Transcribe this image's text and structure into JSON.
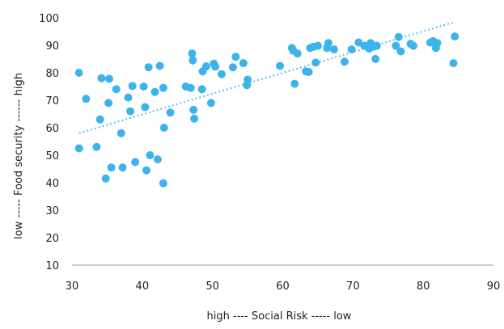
{
  "chart_data": {
    "type": "scatter",
    "title": "",
    "xlabel": "high ---- Social Risk ----- low",
    "ylabel": "low ----- Food security ------ high",
    "xlim": [
      30,
      90
    ],
    "ylim": [
      10,
      100
    ],
    "xticks": [
      "30",
      "40",
      "50",
      "60",
      "70",
      "80",
      "90"
    ],
    "yticks": [
      "10",
      "20",
      "30",
      "40",
      "50",
      "60",
      "70",
      "80",
      "90",
      "100"
    ],
    "grid": false,
    "legend": "none",
    "colors": {
      "points": "#3DB3EC",
      "trendline": "#5BC0EB",
      "axis": "#9a9a9a",
      "text": "#222222"
    },
    "trendline": {
      "style": "dotted",
      "x": [
        31,
        84.5
      ],
      "y": [
        58,
        98.5
      ]
    },
    "series": [
      {
        "points": [
          [
            31,
            80
          ],
          [
            31,
            52.5
          ],
          [
            32,
            70.5
          ],
          [
            33.5,
            53
          ],
          [
            34,
            63
          ],
          [
            34.2,
            78
          ],
          [
            34.8,
            41.5
          ],
          [
            35.2,
            69
          ],
          [
            35.3,
            77.8
          ],
          [
            35.6,
            45.5
          ],
          [
            36.3,
            74
          ],
          [
            37,
            58
          ],
          [
            37.2,
            45.5
          ],
          [
            38,
            71
          ],
          [
            38.3,
            66
          ],
          [
            38.6,
            75.2
          ],
          [
            39,
            47.5
          ],
          [
            40.2,
            75
          ],
          [
            40.4,
            67.5
          ],
          [
            40.6,
            44.5
          ],
          [
            40.9,
            82
          ],
          [
            41.1,
            50
          ],
          [
            41.8,
            73
          ],
          [
            42.2,
            48.5
          ],
          [
            42.5,
            82.5
          ],
          [
            43,
            74.5
          ],
          [
            43,
            39.8
          ],
          [
            43.1,
            60
          ],
          [
            44,
            65.5
          ],
          [
            46.2,
            75
          ],
          [
            46.9,
            74.5
          ],
          [
            47.1,
            87
          ],
          [
            47.2,
            84.5
          ],
          [
            47.3,
            66.5
          ],
          [
            47.4,
            63.3
          ],
          [
            48.5,
            74
          ],
          [
            48.6,
            80.5
          ],
          [
            49.1,
            82.3
          ],
          [
            49.8,
            69
          ],
          [
            50.2,
            83.3
          ],
          [
            50.4,
            82.2
          ],
          [
            51.3,
            79.5
          ],
          [
            52.9,
            82
          ],
          [
            53.3,
            85.8
          ],
          [
            54.4,
            83.5
          ],
          [
            54.9,
            75.5
          ],
          [
            55,
            77.5
          ],
          [
            59.6,
            82.5
          ],
          [
            61.3,
            89
          ],
          [
            61.5,
            88
          ],
          [
            61.7,
            76
          ],
          [
            62.1,
            87
          ],
          [
            63.3,
            80.5
          ],
          [
            63.7,
            80.3
          ],
          [
            63.9,
            89
          ],
          [
            64.4,
            89.5
          ],
          [
            64.7,
            83.7
          ],
          [
            65,
            89.8
          ],
          [
            66.3,
            89
          ],
          [
            66.5,
            90.8
          ],
          [
            67.3,
            88.5
          ],
          [
            68.8,
            84
          ],
          [
            69.8,
            88.5
          ],
          [
            70.8,
            91
          ],
          [
            71.6,
            89.8
          ],
          [
            72.3,
            88.8
          ],
          [
            72.5,
            90.8
          ],
          [
            72.9,
            89.5
          ],
          [
            73.2,
            85
          ],
          [
            73.4,
            89.8
          ],
          [
            76.1,
            89.8
          ],
          [
            76.5,
            93
          ],
          [
            76.8,
            87.8
          ],
          [
            78.2,
            90.5
          ],
          [
            78.6,
            89.8
          ],
          [
            81,
            91
          ],
          [
            81.4,
            91.5
          ],
          [
            81.8,
            89
          ],
          [
            82,
            90.8
          ],
          [
            84.3,
            83.5
          ],
          [
            84.5,
            93.2
          ]
        ]
      }
    ]
  }
}
